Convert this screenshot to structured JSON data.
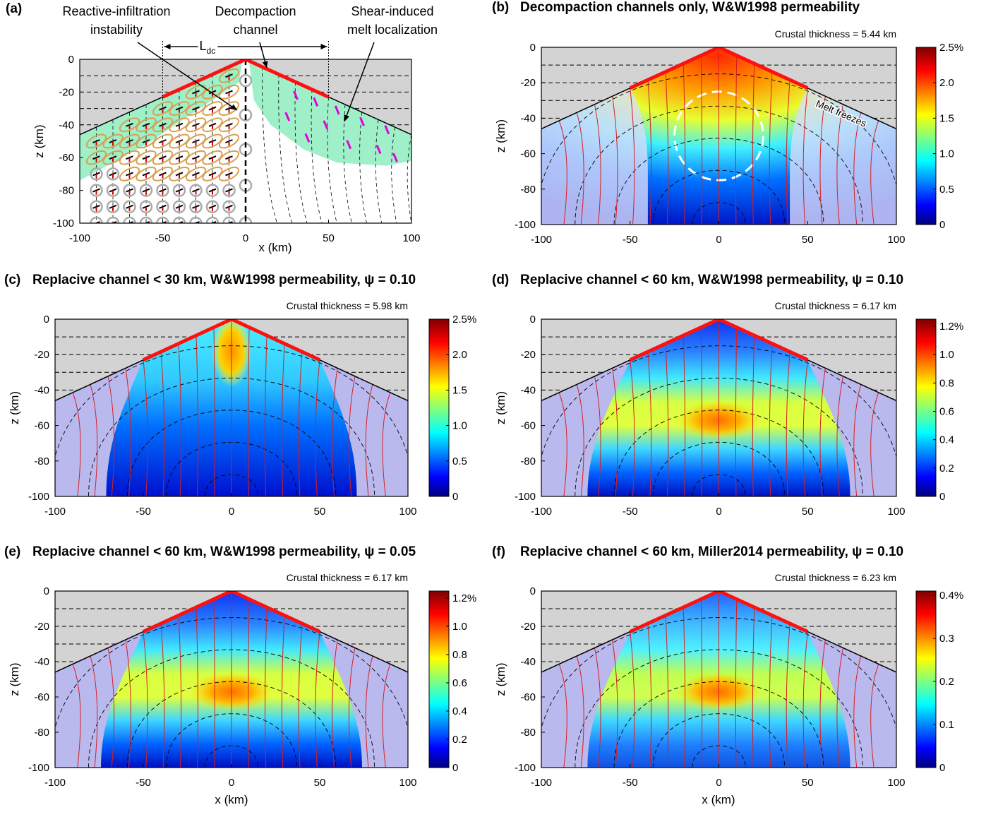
{
  "chart_data": [
    {
      "type": "schematic",
      "label": "(a)",
      "xlabel": "x (km)",
      "ylabel": "z (km)",
      "xlim": [
        -100,
        100
      ],
      "ylim": [
        -100,
        0
      ],
      "xticks": [
        -100,
        -50,
        0,
        50,
        100
      ],
      "yticks": [
        0,
        -20,
        -40,
        -60,
        -80,
        -100
      ],
      "annotations": [
        {
          "lines": [
            "Reactive-infiltration",
            "instability"
          ]
        },
        {
          "lines": [
            "Decompaction",
            "channel"
          ]
        },
        {
          "lines": [
            "Shear-induced",
            "melt localization"
          ]
        }
      ],
      "dimension": {
        "text": "L",
        "sub": "dc"
      }
    },
    {
      "type": "contour",
      "label": "(b)",
      "title": "Decompaction channels only, W&W1998 permeability",
      "subtitle": "Crustal thickness = 5.44 km",
      "ylabel": "z (km)",
      "xlim": [
        -100,
        100
      ],
      "ylim": [
        -100,
        0
      ],
      "xticks": [
        -100,
        -50,
        0,
        50,
        100
      ],
      "yticks": [
        0,
        -20,
        -40,
        -60,
        -80,
        -100
      ],
      "colorbar": {
        "lim": [
          0,
          2.5
        ],
        "ticks": [
          0,
          0.5,
          {
            "value": 1,
            "label": "1.0"
          },
          1.5,
          {
            "value": 2,
            "label": "2.0"
          },
          {
            "value": 2.5,
            "label": "2.5%"
          }
        ]
      },
      "annotations": [
        {
          "lines": [
            "Melt freezes"
          ]
        }
      ]
    },
    {
      "type": "contour",
      "label": "(c)",
      "title": "Replacive channel < 30 km, W&W1998 permeability, ψ = 0.10",
      "subtitle": "Crustal thickness = 5.98 km",
      "ylabel": "z (km)",
      "xlim": [
        -100,
        100
      ],
      "ylim": [
        -100,
        0
      ],
      "xticks": [
        -100,
        -50,
        0,
        50,
        100
      ],
      "yticks": [
        0,
        -20,
        -40,
        -60,
        -80,
        -100
      ],
      "colorbar": {
        "lim": [
          0,
          2.5
        ],
        "ticks": [
          0,
          0.5,
          {
            "value": 1,
            "label": "1.0"
          },
          1.5,
          {
            "value": 2,
            "label": "2.0"
          },
          {
            "value": 2.5,
            "label": "2.5%"
          }
        ]
      }
    },
    {
      "type": "contour",
      "label": "(d)",
      "title": "Replacive channel < 60 km, W&W1998 permeability, ψ = 0.10",
      "subtitle": "Crustal thickness = 6.17 km",
      "ylabel": "z (km)",
      "xlim": [
        -100,
        100
      ],
      "ylim": [
        -100,
        0
      ],
      "xticks": [
        -100,
        -50,
        0,
        50,
        100
      ],
      "yticks": [
        0,
        -20,
        -40,
        -60,
        -80,
        -100
      ],
      "colorbar": {
        "lim": [
          0,
          1.25
        ],
        "ticks": [
          0,
          0.2,
          0.4,
          0.6,
          0.8,
          {
            "value": 1,
            "label": "1.0"
          },
          {
            "value": 1.2,
            "label": "1.2%"
          }
        ]
      }
    },
    {
      "type": "contour",
      "label": "(e)",
      "title": "Replacive channel < 60 km, W&W1998 permeability, ψ = 0.05",
      "subtitle": "Crustal thickness = 6.17 km",
      "xlabel": "x (km)",
      "ylabel": "z (km)",
      "xlim": [
        -100,
        100
      ],
      "ylim": [
        -100,
        0
      ],
      "xticks": [
        -100,
        -50,
        0,
        50,
        100
      ],
      "yticks": [
        0,
        -20,
        -40,
        -60,
        -80,
        -100
      ],
      "colorbar": {
        "lim": [
          0,
          1.25
        ],
        "ticks": [
          0,
          0.2,
          0.4,
          0.6,
          0.8,
          {
            "value": 1,
            "label": "1.0"
          },
          {
            "value": 1.2,
            "label": "1.2%"
          }
        ]
      }
    },
    {
      "type": "contour",
      "label": "(f)",
      "title": "Replacive channel < 60 km, Miller2014 permeability, ψ = 0.10",
      "subtitle": "Crustal thickness = 6.23 km",
      "xlabel": "x (km)",
      "ylabel": "z (km)",
      "xlim": [
        -100,
        100
      ],
      "ylim": [
        -100,
        0
      ],
      "xticks": [
        -100,
        -50,
        0,
        50,
        100
      ],
      "yticks": [
        0,
        -20,
        -40,
        -60,
        -80,
        -100
      ],
      "colorbar": {
        "lim": [
          0,
          0.41
        ],
        "ticks": [
          0,
          0.1,
          0.2,
          0.3,
          {
            "value": 0.4,
            "label": "0.4%"
          }
        ]
      }
    }
  ]
}
